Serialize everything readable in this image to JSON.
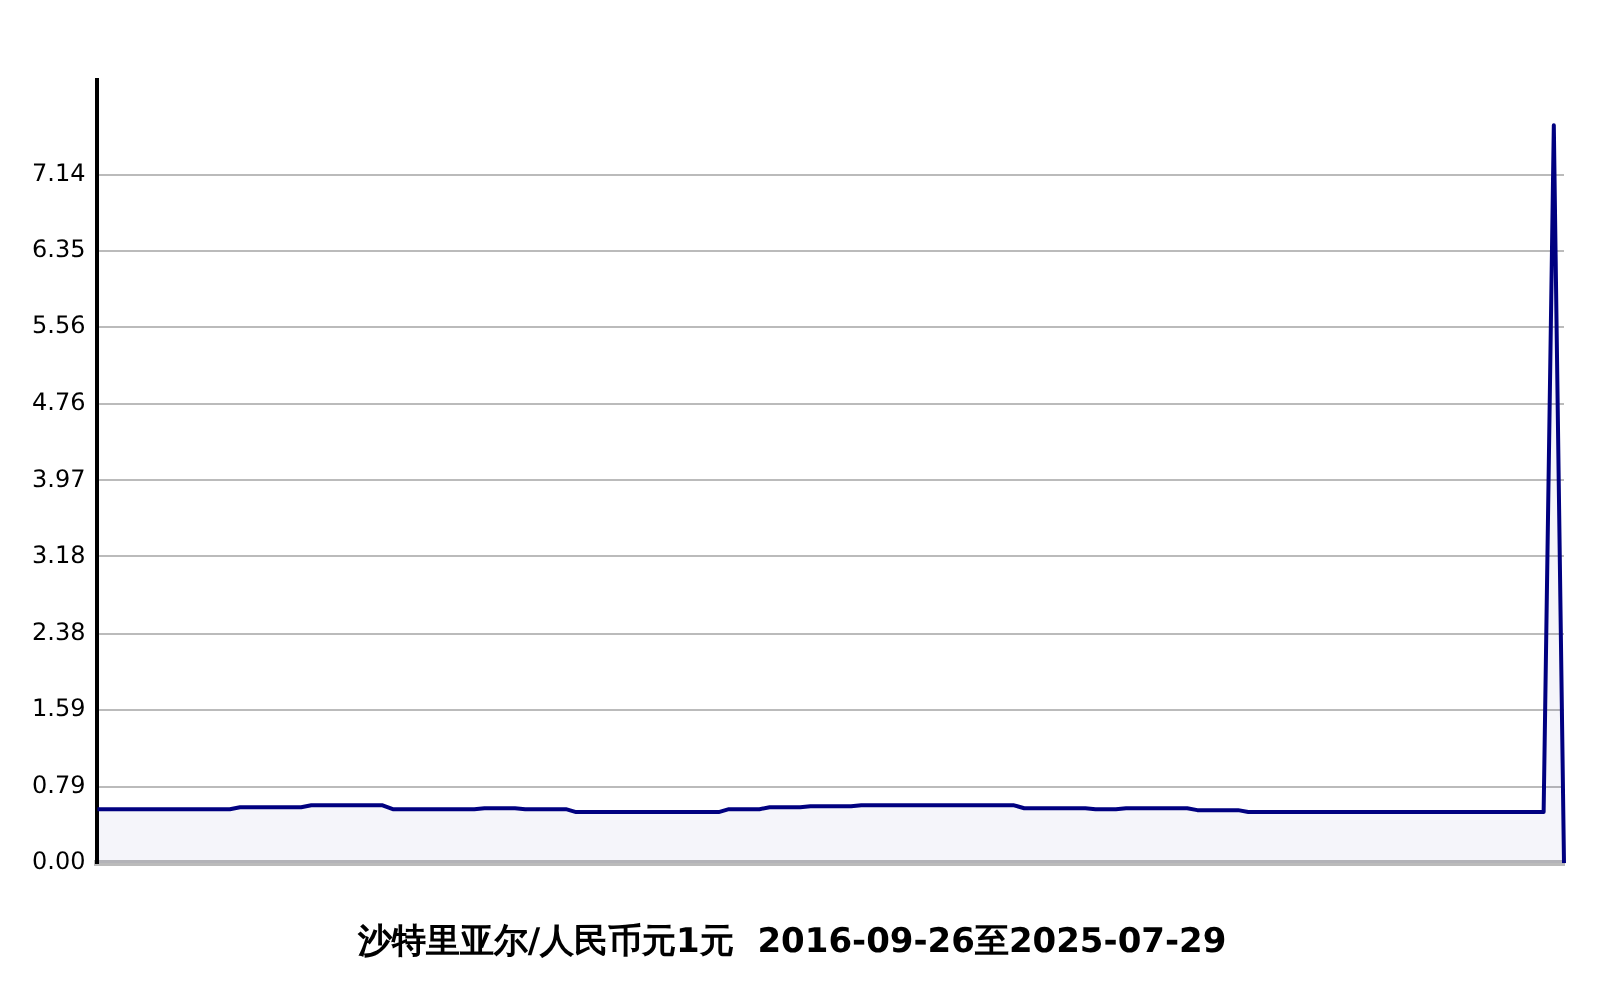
{
  "chart_data": {
    "type": "area",
    "title": "沙特里亚尔/人民币元1元  2016-09-26至2025-07-29",
    "categories": [
      null,
      null,
      null,
      null,
      null,
      null,
      null,
      null,
      null,
      null,
      null,
      null,
      null,
      null,
      null,
      null,
      null,
      null,
      null,
      null,
      null,
      null,
      null,
      null,
      null,
      null,
      null,
      null,
      null,
      null,
      null,
      null,
      null,
      null,
      null,
      null,
      null,
      null,
      null,
      null,
      null,
      null,
      null,
      null,
      null,
      null,
      null,
      null,
      null,
      null,
      null,
      null,
      null,
      null,
      null,
      null,
      null,
      null,
      null,
      null,
      null,
      null,
      null,
      null,
      null,
      null,
      null,
      null,
      null,
      null,
      null,
      null,
      null,
      null,
      null,
      null,
      null,
      null,
      null,
      null,
      null,
      null,
      null,
      null,
      null,
      null,
      null,
      null,
      null,
      null,
      null,
      null,
      null,
      null,
      null,
      null,
      null,
      null,
      null,
      null,
      null,
      null,
      null,
      null,
      null,
      null,
      null,
      null,
      null,
      null,
      null,
      null,
      null,
      null,
      null,
      null,
      null,
      null,
      null,
      null,
      null,
      null,
      null,
      null,
      null,
      null,
      null,
      null,
      null,
      null,
      null,
      null,
      null,
      null,
      null,
      null,
      null,
      null,
      null,
      null,
      null,
      null,
      null,
      null,
      null
    ],
    "series": [
      {
        "color": "#000080",
        "values": [
          0.56,
          0.56,
          0.56,
          0.56,
          0.56,
          0.56,
          0.56,
          0.56,
          0.56,
          0.56,
          0.56,
          0.56,
          0.56,
          0.56,
          0.58,
          0.58,
          0.58,
          0.58,
          0.58,
          0.58,
          0.58,
          0.6,
          0.6,
          0.6,
          0.6,
          0.6,
          0.6,
          0.6,
          0.6,
          0.56,
          0.56,
          0.56,
          0.56,
          0.56,
          0.56,
          0.56,
          0.56,
          0.56,
          0.57,
          0.57,
          0.57,
          0.57,
          0.56,
          0.56,
          0.56,
          0.56,
          0.56,
          0.53,
          0.53,
          0.53,
          0.53,
          0.53,
          0.53,
          0.53,
          0.53,
          0.53,
          0.53,
          0.53,
          0.53,
          0.53,
          0.53,
          0.53,
          0.56,
          0.56,
          0.56,
          0.56,
          0.58,
          0.58,
          0.58,
          0.58,
          0.59,
          0.59,
          0.59,
          0.59,
          0.59,
          0.6,
          0.6,
          0.6,
          0.6,
          0.6,
          0.6,
          0.6,
          0.6,
          0.6,
          0.6,
          0.6,
          0.6,
          0.6,
          0.6,
          0.6,
          0.6,
          0.57,
          0.57,
          0.57,
          0.57,
          0.57,
          0.57,
          0.57,
          0.56,
          0.56,
          0.56,
          0.57,
          0.57,
          0.57,
          0.57,
          0.57,
          0.57,
          0.57,
          0.55,
          0.55,
          0.55,
          0.55,
          0.55,
          0.53,
          0.53,
          0.53,
          0.53,
          0.53,
          0.53,
          0.53,
          0.53,
          0.53,
          0.53,
          0.53,
          0.53,
          0.53,
          0.53,
          0.53,
          0.53,
          0.53,
          0.53,
          0.53,
          0.53,
          0.53,
          0.53,
          0.53,
          0.53,
          0.53,
          0.53,
          0.53,
          0.53,
          0.53,
          0.53,
          7.65,
          0
        ]
      }
    ],
    "ylim": [
      0,
      8.12
    ],
    "yticks": [
      {
        "value": 0,
        "label": "0.00"
      },
      0.79,
      1.59,
      2.38,
      3.18,
      3.97,
      4.76,
      5.56,
      6.35,
      7.14
    ],
    "grid": "y",
    "tick_labels": "y",
    "legend": false
  }
}
